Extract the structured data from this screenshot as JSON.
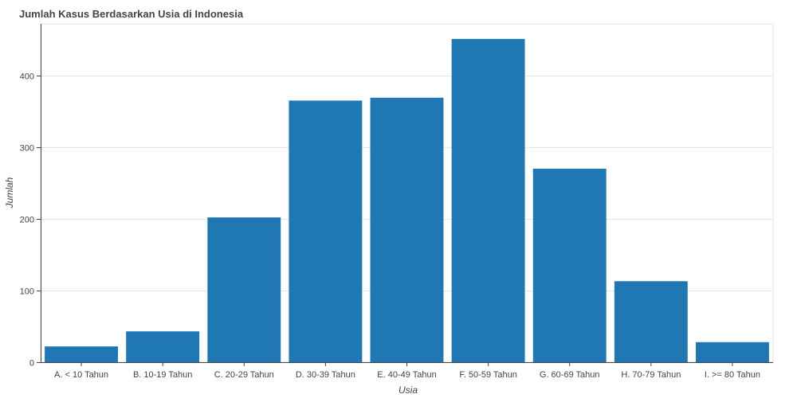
{
  "chart_data": {
    "type": "bar",
    "title": "Jumlah Kasus Berdasarkan Usia di Indonesia",
    "xlabel": "Usia",
    "ylabel": "Jumlah",
    "categories": [
      "A. < 10 Tahun",
      "B. 10-19 Tahun",
      "C. 20-29 Tahun",
      "D. 30-39 Tahun",
      "E. 40-49 Tahun",
      "F. 50-59 Tahun",
      "G. 60-69 Tahun",
      "H. 70-79 Tahun",
      "I. >= 80 Tahun"
    ],
    "values": [
      22,
      43,
      202,
      365,
      369,
      451,
      270,
      113,
      28
    ],
    "ylim": [
      0,
      472
    ],
    "yticks": [
      0,
      100,
      200,
      300,
      400
    ],
    "ytick_labels": [
      "0",
      "100",
      "200",
      "300",
      "400"
    ],
    "grid": true,
    "legend": "none",
    "colors": {
      "bar": "#1f77b4",
      "grid": "#e6e6e6",
      "axis": "#444444",
      "text": "#444444",
      "title": "#444444"
    }
  }
}
